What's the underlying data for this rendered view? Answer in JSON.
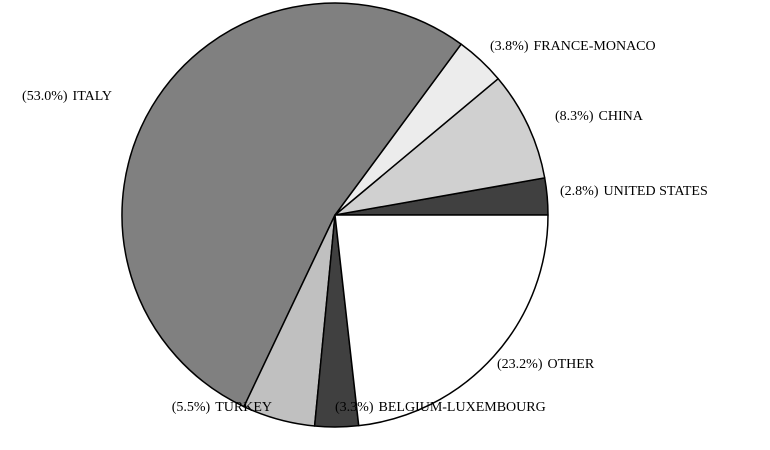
{
  "chart_data": {
    "type": "pie",
    "categories": [
      "UNITED STATES",
      "CHINA",
      "FRANCE-MONACO",
      "ITALY",
      "TURKEY",
      "BELGIUM-LUXEMBOURG",
      "OTHER"
    ],
    "values": [
      2.8,
      8.3,
      3.8,
      53.0,
      5.5,
      3.3,
      23.2
    ],
    "value_labels": [
      "(2.8%)",
      "(8.3%)",
      "(3.8%)",
      "(53.0%)",
      "(5.5%)",
      "(3.3%)",
      "(23.2%)"
    ],
    "colors": [
      "#404040",
      "#d0d0d0",
      "#ececec",
      "#808080",
      "#c0c0c0",
      "#404040",
      "#ffffff"
    ]
  }
}
